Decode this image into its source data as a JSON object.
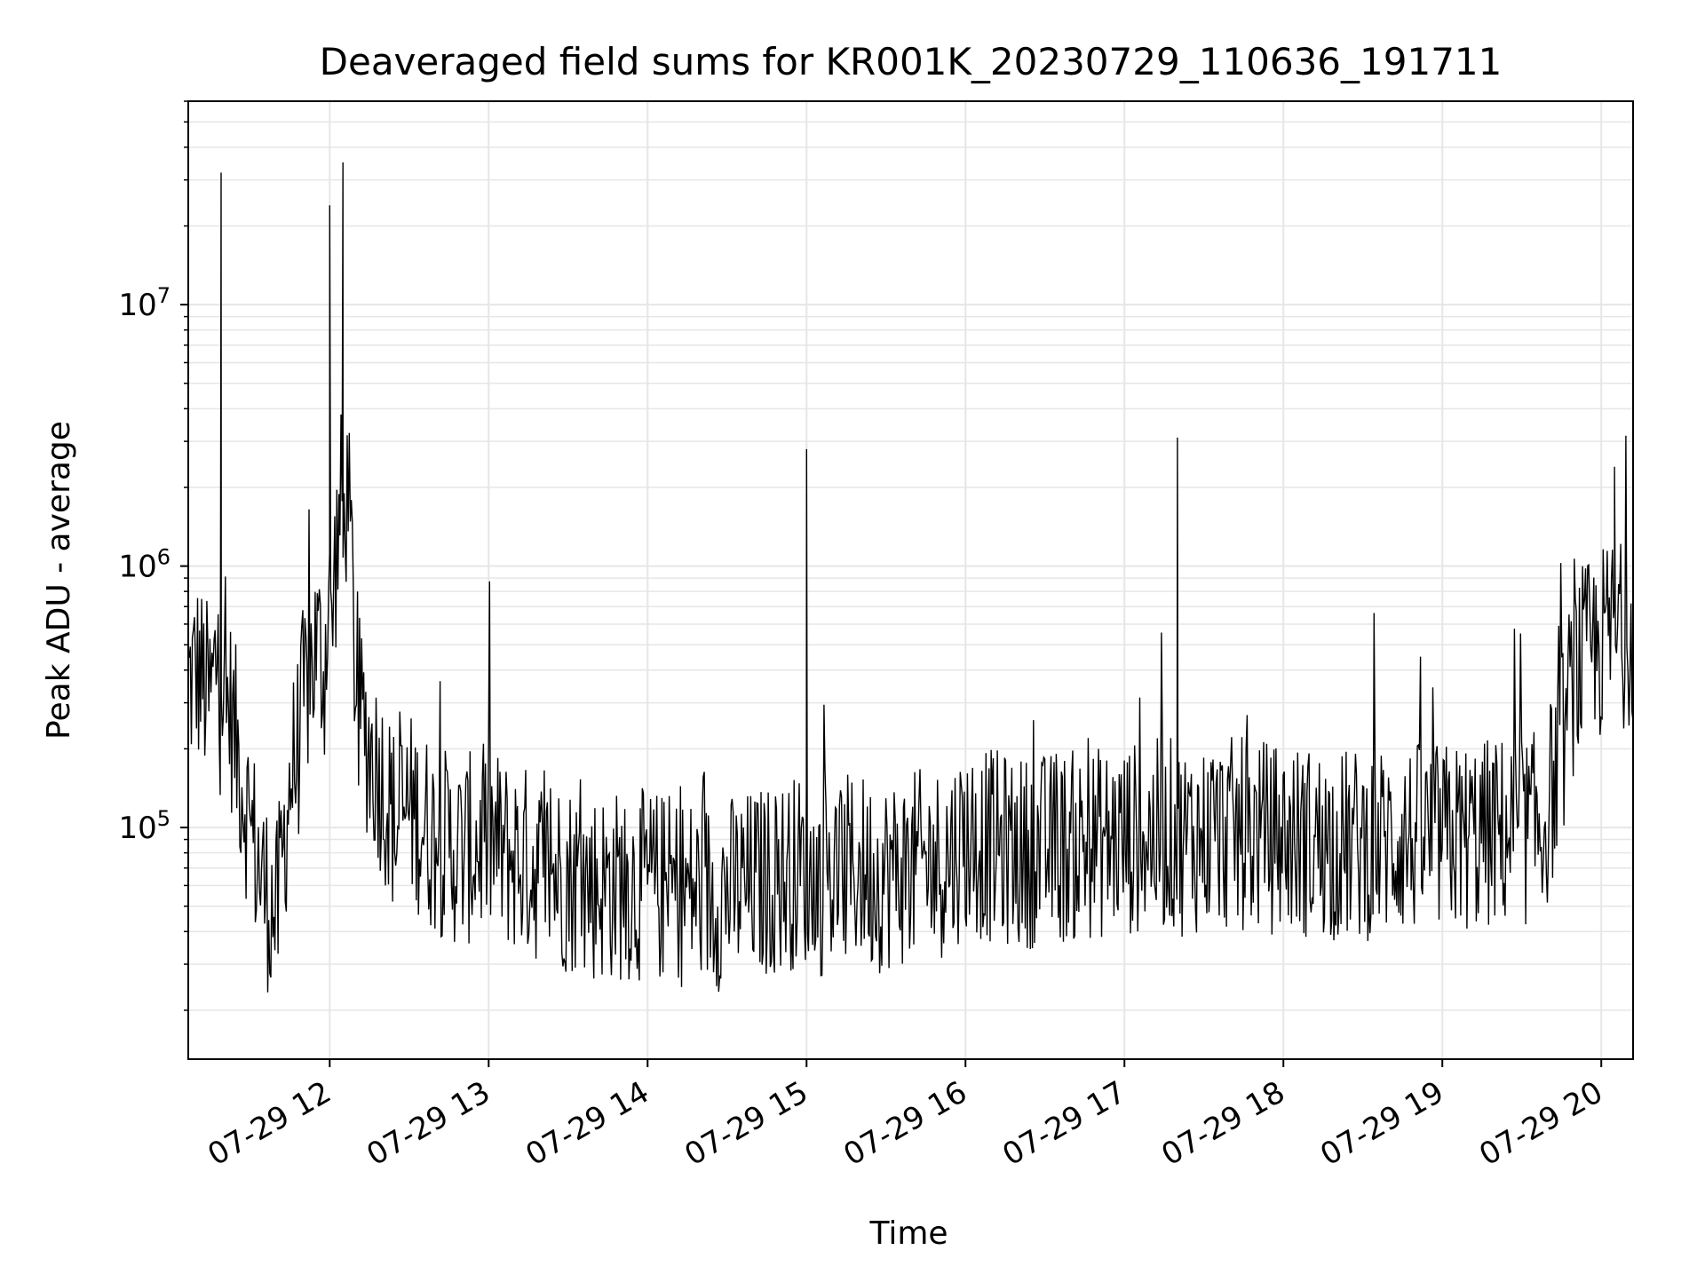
{
  "chart_data": {
    "type": "line",
    "title": "Deaveraged field sums for KR001K_20230729_110636_191711",
    "xlabel": "Time",
    "ylabel": "Peak ADU - average",
    "yscale": "log",
    "xlim": [
      "2023-07-29 11:06:36",
      "2023-07-29 20:12:00"
    ],
    "ylim": [
      13000,
      60000000
    ],
    "grid": true,
    "x_tick_labels": [
      "07-29 12",
      "07-29 13",
      "07-29 14",
      "07-29 15",
      "07-29 16",
      "07-29 17",
      "07-29 18",
      "07-29 19",
      "07-29 20"
    ],
    "y_tick_labels": [
      {
        "base": "10",
        "exp": "5"
      },
      {
        "base": "10",
        "exp": "6"
      },
      {
        "base": "10",
        "exp": "7"
      }
    ],
    "line_color": "#000000",
    "series": [
      {
        "x": [
          "2023-07-29 11:06:36",
          "2023-07-29 11:10:00",
          "2023-07-29 11:15:00",
          "2023-07-29 11:18:00",
          "2023-07-29 11:19:00",
          "2023-07-29 11:20:00",
          "2023-07-29 11:22:00",
          "2023-07-29 11:25:00",
          "2023-07-29 11:30:00",
          "2023-07-29 11:35:00",
          "2023-07-29 11:40:00",
          "2023-07-29 11:45:00",
          "2023-07-29 11:48:00",
          "2023-07-29 11:50:00",
          "2023-07-29 11:55:00",
          "2023-07-29 11:58:00",
          "2023-07-29 12:00:00",
          "2023-07-29 12:02:00",
          "2023-07-29 12:05:00",
          "2023-07-29 12:06:00",
          "2023-07-29 12:08:00",
          "2023-07-29 12:10:00",
          "2023-07-29 12:15:00",
          "2023-07-29 12:20:00",
          "2023-07-29 12:25:00",
          "2023-07-29 12:30:00",
          "2023-07-29 12:40:00",
          "2023-07-29 12:50:00",
          "2023-07-29 13:00:00",
          "2023-07-29 13:06:00",
          "2023-07-29 13:20:00",
          "2023-07-29 13:40:00",
          "2023-07-29 14:00:00",
          "2023-07-29 14:25:00",
          "2023-07-29 14:40:00",
          "2023-07-29 15:00:00",
          "2023-07-29 15:20:00",
          "2023-07-29 15:26:00",
          "2023-07-29 15:40:00",
          "2023-07-29 15:52:00",
          "2023-07-29 16:00:00",
          "2023-07-29 16:20:00",
          "2023-07-29 16:40:00",
          "2023-07-29 17:00:00",
          "2023-07-29 17:20:00",
          "2023-07-29 17:40:00",
          "2023-07-29 18:00:00",
          "2023-07-29 18:25:00",
          "2023-07-29 18:45:00",
          "2023-07-29 19:00:00",
          "2023-07-29 19:20:00",
          "2023-07-29 19:38:00",
          "2023-07-29 19:45:00",
          "2023-07-29 19:50:00",
          "2023-07-29 19:55:00",
          "2023-07-29 20:00:00",
          "2023-07-29 20:05:00",
          "2023-07-29 20:12:00"
        ],
        "y": [
          350000,
          400000,
          300000,
          500000,
          32000000,
          250000,
          300000,
          200000,
          100000,
          60000,
          45000,
          150000,
          200000,
          300000,
          500000,
          400000,
          24000000,
          1000000,
          35000000,
          2000000,
          1200000,
          300000,
          200000,
          150000,
          100000,
          120000,
          90000,
          80000,
          90000,
          80000,
          70000,
          60000,
          60000,
          55000,
          60000,
          2800000,
          70000,
          65000,
          70000,
          75000,
          90000,
          80000,
          85000,
          90000,
          3100000,
          95000,
          90000,
          85000,
          90000,
          90000,
          95000,
          100000,
          200000,
          400000,
          450000,
          500000,
          2400000,
          600000
        ]
      }
    ]
  }
}
